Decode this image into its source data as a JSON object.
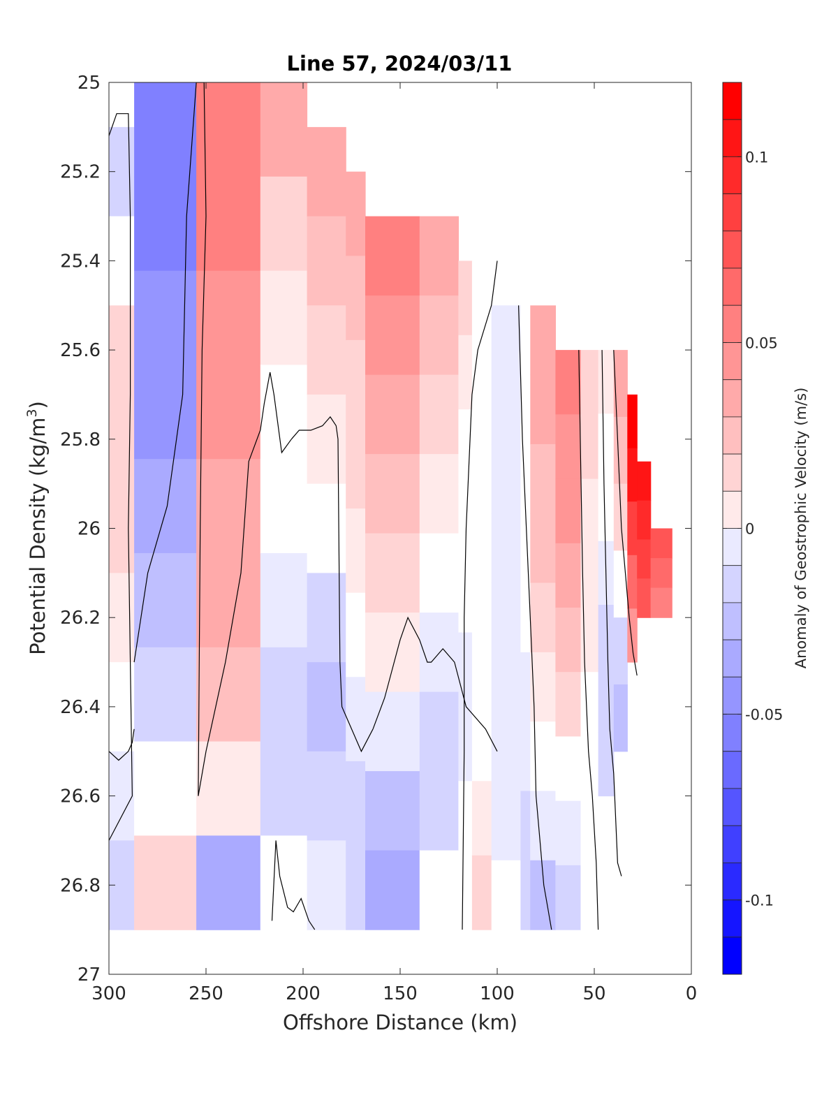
{
  "chart_data": {
    "type": "heatmap",
    "title": "Line 57, 2024/03/11",
    "xlabel": "Offshore Distance (km)",
    "ylabel": "Potential Density (kg/m³)",
    "ylabel_base": "Potential Density (kg/m",
    "ylabel_sup": "3",
    "ylabel_end": ")",
    "colorbar_label": "Anomaly of Geostrophic Velocity (m/s)",
    "xlim": [
      300,
      0
    ],
    "ylim": [
      25,
      27
    ],
    "x_reversed": true,
    "y_reversed": true,
    "xticks": [
      300,
      250,
      200,
      150,
      100,
      50,
      0
    ],
    "xtick_labels": [
      "300",
      "250",
      "200",
      "150",
      "100",
      "50",
      "0"
    ],
    "yticks": [
      25,
      25.2,
      25.4,
      25.6,
      25.8,
      26,
      26.2,
      26.4,
      26.6,
      26.8,
      27
    ],
    "ytick_labels": [
      "25",
      "25.2",
      "25.4",
      "25.6",
      "25.8",
      "26",
      "26.2",
      "26.4",
      "26.6",
      "26.8",
      "27"
    ],
    "colorbar": {
      "range": [
        -0.12,
        0.12
      ],
      "ticks": [
        0.1,
        0.05,
        0,
        -0.05,
        -0.1
      ],
      "tick_labels": [
        "0.1",
        "0.05",
        "0",
        "-0.05",
        "-0.1"
      ],
      "step": 0.01,
      "colormap": "blue-white-red",
      "positive_color": "#ff0000",
      "negative_color": "#0000ff",
      "neutral_color": "#ffffff"
    },
    "zero_contour_lines": "black",
    "panels": [
      {
        "x_range": [
          300,
          287
        ],
        "top": 25.1,
        "bottom": 26.9,
        "levels": [
          -0.02,
          0.0,
          0.02,
          0.02,
          0.02,
          0.01,
          0.0,
          -0.01,
          -0.02
        ]
      },
      {
        "x_range": [
          287,
          255
        ],
        "top": 25.0,
        "bottom": 26.9,
        "levels": [
          -0.06,
          -0.06,
          -0.05,
          -0.05,
          -0.04,
          -0.03,
          -0.02,
          0.0,
          0.02
        ]
      },
      {
        "x_range": [
          255,
          222
        ],
        "top": 25.0,
        "bottom": 26.9,
        "levels": [
          0.06,
          0.06,
          0.05,
          0.05,
          0.04,
          0.04,
          0.03,
          0.01,
          -0.04
        ]
      },
      {
        "x_range": [
          222,
          198
        ],
        "top": 25.0,
        "bottom": 26.9,
        "levels": [
          0.04,
          0.02,
          0.01,
          0.0,
          0.0,
          -0.01,
          -0.02,
          -0.02,
          0.0
        ]
      },
      {
        "x_range": [
          198,
          178
        ],
        "top": 25.1,
        "bottom": 26.9,
        "levels": [
          0.04,
          0.03,
          0.02,
          0.01,
          0.0,
          -0.02,
          -0.03,
          -0.02,
          -0.01
        ]
      },
      {
        "x_range": [
          178,
          168
        ],
        "top": 25.2,
        "bottom": 26.9,
        "levels": [
          0.04,
          0.03,
          0.02,
          0.02,
          0.01,
          0.0,
          -0.01,
          -0.02,
          -0.02
        ]
      },
      {
        "x_range": [
          168,
          140
        ],
        "top": 25.3,
        "bottom": 26.9,
        "levels": [
          0.06,
          0.05,
          0.04,
          0.03,
          0.02,
          0.01,
          -0.01,
          -0.03,
          -0.04
        ]
      },
      {
        "x_range": [
          140,
          120
        ],
        "top": 25.3,
        "bottom": 26.9,
        "levels": [
          0.04,
          0.03,
          0.02,
          0.01,
          0.0,
          -0.01,
          -0.02,
          -0.02,
          0.0
        ]
      },
      {
        "x_range": [
          120,
          113
        ],
        "top": 25.4,
        "bottom": 26.9,
        "levels": [
          0.02,
          0.01,
          0.0,
          0.0,
          0.0,
          -0.01,
          -0.01,
          0.0,
          0.0
        ]
      },
      {
        "x_range": [
          113,
          103
        ],
        "top": 25.4,
        "bottom": 26.9,
        "levels": [
          0.0,
          0.0,
          0.0,
          0.0,
          0.0,
          0.0,
          0.0,
          0.01,
          0.02
        ]
      },
      {
        "x_range": [
          103,
          88
        ],
        "top": 25.5,
        "bottom": 26.9,
        "levels": [
          -0.01,
          -0.01,
          -0.01,
          -0.01,
          -0.01,
          -0.01,
          -0.01,
          -0.01,
          0.0
        ]
      },
      {
        "x_range": [
          88,
          83
        ],
        "top": 25.5,
        "bottom": 26.9,
        "levels": [
          0.0,
          0.0,
          0.0,
          0.0,
          0.0,
          -0.01,
          -0.01,
          -0.02,
          -0.02
        ]
      },
      {
        "x_range": [
          83,
          70
        ],
        "top": 25.5,
        "bottom": 26.9,
        "levels": [
          0.04,
          0.04,
          0.03,
          0.03,
          0.02,
          0.01,
          0.0,
          -0.01,
          -0.03
        ]
      },
      {
        "x_range": [
          70,
          57
        ],
        "top": 25.6,
        "bottom": 26.9,
        "levels": [
          0.06,
          0.05,
          0.05,
          0.04,
          0.03,
          0.02,
          0.0,
          -0.01,
          -0.02
        ]
      },
      {
        "x_range": [
          57,
          48
        ],
        "top": 25.6,
        "bottom": 26.9,
        "levels": [
          0.02,
          0.02,
          0.01,
          0.01,
          0.01,
          0.0,
          0.0,
          0.0,
          0.0
        ]
      },
      {
        "x_range": [
          48,
          40
        ],
        "top": 25.6,
        "bottom": 26.6,
        "levels": [
          0.01,
          0.0,
          0.0,
          -0.01,
          -0.02,
          -0.02,
          -0.02
        ]
      },
      {
        "x_range": [
          40,
          33
        ],
        "top": 25.6,
        "bottom": 26.5,
        "levels": [
          0.04,
          0.03,
          0.02,
          0.0,
          -0.02,
          -0.03
        ]
      },
      {
        "x_range": [
          33,
          28
        ],
        "top": 25.7,
        "bottom": 26.3,
        "levels": [
          0.12,
          0.11,
          0.09,
          0.07,
          0.05
        ]
      },
      {
        "x_range": [
          28,
          21
        ],
        "top": 25.85,
        "bottom": 26.2,
        "levels": [
          0.11,
          0.1,
          0.09,
          0.08
        ]
      },
      {
        "x_range": [
          21,
          10
        ],
        "top": 26.0,
        "bottom": 26.2,
        "levels": [
          0.08,
          0.07,
          0.06
        ]
      }
    ],
    "contours": [
      {
        "x": [
          300,
          296,
          290,
          289,
          289,
          290,
          289,
          288,
          300
        ],
        "y": [
          25.12,
          25.07,
          25.07,
          25.3,
          25.7,
          26.0,
          26.3,
          26.6,
          26.7
        ]
      },
      {
        "x": [
          300,
          295,
          290,
          288,
          287
        ],
        "y": [
          26.5,
          26.52,
          26.5,
          26.48,
          26.45
        ]
      },
      {
        "x": [
          287,
          280,
          270,
          262,
          260,
          255,
          251,
          250,
          252,
          253,
          254
        ],
        "y": [
          26.3,
          26.1,
          25.95,
          25.7,
          25.3,
          25.0,
          25.0,
          25.3,
          25.6,
          26.0,
          26.6
        ]
      },
      {
        "x": [
          254,
          250,
          240,
          232,
          228,
          222,
          220,
          217,
          215,
          211,
          206
        ],
        "y": [
          26.6,
          26.5,
          26.3,
          26.1,
          25.85,
          25.78,
          25.72,
          25.65,
          25.7,
          25.83,
          25.8
        ]
      },
      {
        "x": [
          206,
          202,
          196,
          190,
          186,
          183,
          182,
          181,
          180,
          170,
          164
        ],
        "y": [
          25.8,
          25.78,
          25.78,
          25.77,
          25.75,
          25.77,
          25.8,
          26.3,
          26.4,
          26.5,
          26.45
        ]
      },
      {
        "x": [
          164,
          158,
          150,
          146,
          140,
          136,
          134,
          128,
          122,
          116,
          106,
          100
        ],
        "y": [
          26.45,
          26.38,
          26.25,
          26.2,
          26.25,
          26.3,
          26.3,
          26.27,
          26.3,
          26.4,
          26.45,
          26.5
        ]
      },
      {
        "x": [
          100,
          103,
          110,
          113,
          114,
          116,
          117,
          117,
          118
        ],
        "y": [
          25.4,
          25.5,
          25.6,
          25.7,
          25.8,
          26.0,
          26.2,
          26.5,
          26.9
        ]
      },
      {
        "x": [
          89,
          87,
          85,
          83,
          81,
          80,
          78,
          76,
          74,
          72
        ],
        "y": [
          25.5,
          25.8,
          26.0,
          26.2,
          26.4,
          26.6,
          26.7,
          26.8,
          26.85,
          26.9
        ]
      },
      {
        "x": [
          58,
          57,
          56,
          55,
          53,
          51,
          49,
          48
        ],
        "y": [
          25.6,
          25.85,
          26.1,
          26.3,
          26.5,
          26.6,
          26.75,
          26.9
        ]
      },
      {
        "x": [
          46,
          45,
          44,
          43,
          42,
          40,
          39,
          38,
          36
        ],
        "y": [
          25.6,
          25.9,
          26.1,
          26.3,
          26.45,
          26.55,
          26.65,
          26.75,
          26.78
        ]
      },
      {
        "x": [
          40,
          38,
          36,
          34,
          32,
          30,
          28
        ],
        "y": [
          25.6,
          25.8,
          26.0,
          26.1,
          26.2,
          26.28,
          26.33
        ]
      },
      {
        "x": [
          216,
          214,
          212,
          208,
          205,
          201,
          197,
          194
        ],
        "y": [
          26.88,
          26.7,
          26.78,
          26.85,
          26.86,
          26.83,
          26.88,
          26.9
        ]
      }
    ]
  }
}
